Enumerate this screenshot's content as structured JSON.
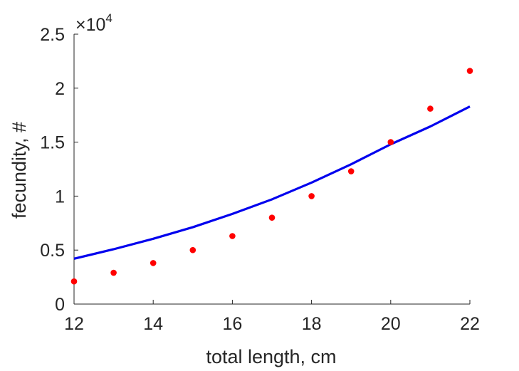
{
  "chart_data": {
    "type": "scatter",
    "title": "",
    "xlabel": "total length, cm",
    "ylabel": "fecundity, #",
    "xlim": [
      12,
      22
    ],
    "ylim": [
      0,
      25000
    ],
    "x_ticks": [
      12,
      14,
      16,
      18,
      20,
      22
    ],
    "x_tick_labels": [
      "12",
      "14",
      "16",
      "18",
      "20",
      "22"
    ],
    "y_ticks": [
      0,
      5000,
      10000,
      15000,
      20000,
      25000
    ],
    "y_tick_labels": [
      "0",
      "0.5",
      "1",
      "1.5",
      "2",
      "2.5"
    ],
    "y_exponent_label": "×10",
    "y_exponent_power": "4",
    "grid": false,
    "series": [
      {
        "type": "scatter",
        "color": "#ff0000",
        "x": [
          12,
          13,
          14,
          15,
          16,
          17,
          18,
          19,
          20,
          21,
          22
        ],
        "y": [
          2100,
          2900,
          3800,
          5000,
          6300,
          8000,
          10000,
          12300,
          15000,
          18100,
          21600
        ]
      },
      {
        "type": "line",
        "color": "#0000ee",
        "x": [
          12,
          13,
          14,
          15,
          16,
          17,
          18,
          19,
          20,
          21,
          22
        ],
        "y": [
          4200,
          5080,
          6050,
          7120,
          8350,
          9700,
          11250,
          12950,
          14800,
          16450,
          18300
        ]
      }
    ]
  }
}
